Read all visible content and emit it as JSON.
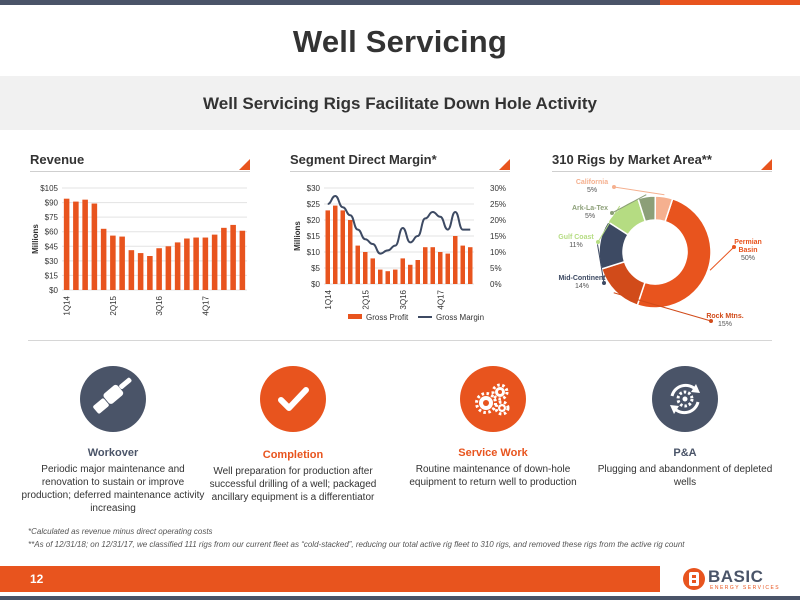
{
  "slide": {
    "title": "Well Servicing",
    "subtitle": "Well Servicing Rigs Facilitate Down Hole Activity",
    "page_number": "12"
  },
  "sections": {
    "revenue": "Revenue",
    "margin": "Segment Direct Margin*",
    "rigs": "310 Rigs by Market Area**"
  },
  "colors": {
    "orange": "#e8541e",
    "navy": "#4a5468",
    "grey_band": "#f1f1f1"
  },
  "chart_data": [
    {
      "type": "bar",
      "name": "revenue",
      "ylabel": "Millions",
      "ylim": [
        0,
        105
      ],
      "yticks": [
        "$0",
        "$15",
        "$30",
        "$45",
        "$60",
        "$75",
        "$90",
        "$105"
      ],
      "ytick_values": [
        0,
        15,
        30,
        45,
        60,
        75,
        90,
        105
      ],
      "x_labels": [
        "1Q14",
        "2Q15",
        "3Q16",
        "4Q17"
      ],
      "x_label_index": [
        0,
        5,
        10,
        15
      ],
      "values": [
        94,
        91,
        93,
        89,
        63,
        56,
        55,
        41,
        38,
        35,
        43,
        45,
        49,
        53,
        54,
        54,
        57,
        64,
        67,
        61
      ],
      "bar_color": "#e8541e",
      "grid": true
    },
    {
      "type": "bar+line",
      "name": "segment-direct-margin",
      "ylabel": "Millions",
      "ylim": [
        0,
        30
      ],
      "yticks": [
        "$0",
        "$5",
        "$10",
        "$15",
        "$20",
        "$25",
        "$30"
      ],
      "ytick_values": [
        0,
        5,
        10,
        15,
        20,
        25,
        30
      ],
      "y2lim": [
        0,
        30
      ],
      "y2ticks": [
        "0%",
        "5%",
        "10%",
        "15%",
        "20%",
        "25%",
        "30%"
      ],
      "y2tick_values": [
        0,
        5,
        10,
        15,
        20,
        25,
        30
      ],
      "x_labels": [
        "1Q14",
        "2Q15",
        "3Q16",
        "4Q17"
      ],
      "x_label_index": [
        0,
        5,
        10,
        15
      ],
      "series": [
        {
          "name": "Gross Profit",
          "kind": "bar",
          "color": "#e8541e",
          "values": [
            23,
            24.5,
            23,
            20,
            12,
            10,
            8,
            4.5,
            4,
            4.5,
            8,
            6,
            7.5,
            11.5,
            11.5,
            10,
            9.5,
            15,
            12,
            11.5
          ]
        },
        {
          "name": "Gross Margin",
          "kind": "line",
          "color": "#3d4a63",
          "values": [
            25,
            27.5,
            24,
            21.5,
            17,
            14,
            12.5,
            9.5,
            10.5,
            12,
            17.5,
            13,
            15,
            20.5,
            22.5,
            21,
            17,
            22.5,
            17,
            17
          ]
        }
      ],
      "legend": [
        "Gross Profit",
        "Gross Margin"
      ],
      "legend_position": "bottom",
      "grid": true
    },
    {
      "type": "pie",
      "name": "rigs-by-market-area",
      "donut": true,
      "slices": [
        {
          "label": "Permian Basin",
          "value": 50,
          "pct": "50%",
          "color": "#e8541e"
        },
        {
          "label": "Rock Mtns.",
          "value": 15,
          "pct": "15%",
          "color": "#d14b1a"
        },
        {
          "label": "Mid-Continent",
          "value": 14,
          "pct": "14%",
          "color": "#3d4a63"
        },
        {
          "label": "Gulf Coast",
          "value": 11,
          "pct": "11%",
          "color": "#b5dc82"
        },
        {
          "label": "Ark-La-Tex",
          "value": 5,
          "pct": "5%",
          "color": "#8c9f78"
        },
        {
          "label": "California",
          "value": 5,
          "pct": "5%",
          "color": "#f5b08f"
        }
      ]
    }
  ],
  "services": [
    {
      "title": "Workover",
      "color": "#4a5468",
      "icon": "wrench-hand-icon",
      "desc": "Periodic major maintenance and renovation to sustain or improve production; deferred maintenance activity increasing"
    },
    {
      "title": "Completion",
      "color": "#e8541e",
      "icon": "checkmark-icon",
      "desc": "Well preparation for production after successful drilling of a well; packaged ancillary equipment is a differentiator"
    },
    {
      "title": "Service Work",
      "color": "#e8541e",
      "icon": "gears-icon",
      "desc": "Routine maintenance of down-hole equipment to return well to production"
    },
    {
      "title": "P&A",
      "color": "#4a5468",
      "icon": "recycle-gear-icon",
      "desc": "Plugging and abandonment of depleted wells"
    }
  ],
  "footnotes": [
    "*Calculated as revenue minus direct operating costs",
    "**As of 12/31/18; on 12/31/17, we classified 111 rigs from our current fleet as “cold-stacked”, reducing our total active rig fleet to 310 rigs, and removed these rigs from the active rig count"
  ],
  "logo": {
    "text": "BASIC",
    "sub": "ENERGY SERVICES"
  }
}
